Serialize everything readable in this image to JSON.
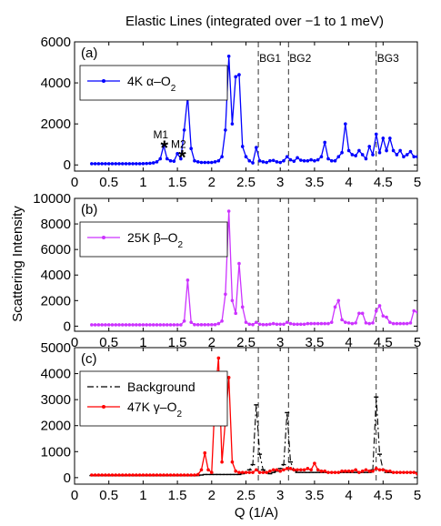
{
  "chart_data": {
    "type": "line",
    "title": "Elastic Lines (integrated over −1 to 1 meV)",
    "xlabel": "Q (1/A)",
    "ylabel": "Scattering Intensity",
    "xlim": [
      0,
      5
    ],
    "xticks": [
      0,
      0.5,
      1,
      1.5,
      2,
      2.5,
      3,
      3.5,
      4,
      4.5,
      5
    ],
    "xtick_labels": [
      "0",
      "0.5",
      "1",
      "1.5",
      "2",
      "2.5",
      "3",
      "3.5",
      "4",
      "4.5",
      "5"
    ],
    "grid": false,
    "vlines": [
      {
        "x": 2.68,
        "label": "BG1"
      },
      {
        "x": 3.12,
        "label": "BG2"
      },
      {
        "x": 4.4,
        "label": "BG3"
      }
    ],
    "panels": [
      {
        "tag": "(a)",
        "ylim": [
          -300,
          6000
        ],
        "yticks": [
          0,
          2000,
          4000,
          6000
        ],
        "ytick_labels": [
          "0",
          "2000",
          "4000",
          "6000"
        ],
        "legend_placement": "top-left",
        "annotations": [
          {
            "text": "M1",
            "x": 1.31,
            "y": 1200
          },
          {
            "text": "M2",
            "x": 1.57,
            "y": 750
          }
        ],
        "series": [
          {
            "name_main": "4K α–O",
            "name_sub": "2",
            "color": "#0000ff",
            "x": [
              0.25,
              0.3,
              0.35,
              0.4,
              0.45,
              0.5,
              0.55,
              0.6,
              0.65,
              0.7,
              0.75,
              0.8,
              0.85,
              0.9,
              0.95,
              1.0,
              1.05,
              1.1,
              1.15,
              1.2,
              1.25,
              1.3,
              1.35,
              1.4,
              1.45,
              1.5,
              1.55,
              1.6,
              1.65,
              1.7,
              1.75,
              1.8,
              1.85,
              1.9,
              1.95,
              2.0,
              2.05,
              2.1,
              2.15,
              2.2,
              2.25,
              2.3,
              2.35,
              2.4,
              2.45,
              2.5,
              2.55,
              2.6,
              2.65,
              2.7,
              2.75,
              2.8,
              2.85,
              2.9,
              2.95,
              3.0,
              3.05,
              3.1,
              3.15,
              3.2,
              3.25,
              3.3,
              3.35,
              3.4,
              3.45,
              3.5,
              3.55,
              3.6,
              3.65,
              3.7,
              3.75,
              3.8,
              3.85,
              3.9,
              3.95,
              4.0,
              4.05,
              4.1,
              4.15,
              4.2,
              4.25,
              4.3,
              4.35,
              4.4,
              4.45,
              4.5,
              4.55,
              4.6,
              4.65,
              4.7,
              4.75,
              4.8,
              4.85,
              4.9,
              4.95,
              5.0
            ],
            "y": [
              60,
              60,
              60,
              60,
              60,
              60,
              60,
              60,
              60,
              60,
              60,
              60,
              60,
              60,
              60,
              65,
              70,
              80,
              100,
              150,
              300,
              950,
              300,
              200,
              180,
              550,
              300,
              1700,
              3350,
              800,
              200,
              150,
              120,
              120,
              120,
              120,
              150,
              200,
              400,
              1700,
              5300,
              2000,
              4300,
              4400,
              900,
              400,
              200,
              100,
              850,
              200,
              150,
              120,
              200,
              220,
              150,
              120,
              200,
              400,
              250,
              180,
              350,
              230,
              200,
              200,
              250,
              200,
              250,
              400,
              1100,
              300,
              200,
              200,
              400,
              600,
              2000,
              700,
              500,
              450,
              700,
              500,
              300,
              900,
              500,
              1500,
              600,
              1300,
              700,
              1300,
              700,
              500,
              700,
              400,
              500,
              650,
              400,
              400
            ]
          }
        ]
      },
      {
        "tag": "(b)",
        "ylim": [
          -400,
          10000
        ],
        "yticks": [
          0,
          2000,
          4000,
          6000,
          8000,
          10000
        ],
        "ytick_labels": [
          "0",
          "2000",
          "4000",
          "6000",
          "8000",
          "10000"
        ],
        "legend_placement": "top-left",
        "series": [
          {
            "name_main": "25K β–O",
            "name_sub": "2",
            "color": "#cc33ff",
            "x": [
              0.25,
              0.3,
              0.35,
              0.4,
              0.45,
              0.5,
              0.55,
              0.6,
              0.65,
              0.7,
              0.75,
              0.8,
              0.85,
              0.9,
              0.95,
              1.0,
              1.05,
              1.1,
              1.15,
              1.2,
              1.25,
              1.3,
              1.35,
              1.4,
              1.45,
              1.5,
              1.55,
              1.6,
              1.65,
              1.7,
              1.75,
              1.8,
              1.85,
              1.9,
              1.95,
              2.0,
              2.05,
              2.1,
              2.15,
              2.2,
              2.25,
              2.3,
              2.35,
              2.4,
              2.45,
              2.5,
              2.55,
              2.6,
              2.65,
              2.7,
              2.75,
              2.8,
              2.85,
              2.9,
              2.95,
              3.0,
              3.05,
              3.1,
              3.15,
              3.2,
              3.25,
              3.3,
              3.35,
              3.4,
              3.45,
              3.5,
              3.55,
              3.6,
              3.65,
              3.7,
              3.75,
              3.8,
              3.85,
              3.9,
              3.95,
              4.0,
              4.05,
              4.1,
              4.15,
              4.2,
              4.25,
              4.3,
              4.35,
              4.4,
              4.45,
              4.5,
              4.55,
              4.6,
              4.65,
              4.7,
              4.75,
              4.8,
              4.85,
              4.9,
              4.95,
              5.0
            ],
            "y": [
              100,
              100,
              100,
              100,
              100,
              100,
              100,
              100,
              100,
              100,
              100,
              100,
              100,
              100,
              100,
              100,
              100,
              100,
              100,
              100,
              100,
              100,
              100,
              100,
              100,
              100,
              100,
              400,
              3600,
              300,
              120,
              110,
              110,
              110,
              110,
              110,
              120,
              200,
              400,
              2500,
              9000,
              2000,
              1000,
              4900,
              1500,
              300,
              150,
              120,
              300,
              150,
              120,
              120,
              150,
              200,
              150,
              150,
              150,
              300,
              200,
              150,
              150,
              150,
              150,
              200,
              200,
              200,
              200,
              200,
              200,
              200,
              300,
              1500,
              2000,
              500,
              300,
              250,
              200,
              250,
              1000,
              1000,
              250,
              200,
              250,
              1200,
              1600,
              800,
              700,
              300,
              200,
              200,
              200,
              200,
              200,
              250,
              1200,
              1100
            ]
          }
        ]
      },
      {
        "tag": "(c)",
        "ylim": [
          -250,
          5000
        ],
        "yticks": [
          0,
          1000,
          2000,
          3000,
          4000,
          5000
        ],
        "ytick_labels": [
          "0",
          "1000",
          "2000",
          "3000",
          "4000",
          "5000"
        ],
        "legend_placement": "top-left",
        "series": [
          {
            "name": "Background",
            "color": "#000000",
            "dash": true,
            "x": [
              0.25,
              0.3,
              0.35,
              0.4,
              0.45,
              0.5,
              0.55,
              0.6,
              0.65,
              0.7,
              0.75,
              0.8,
              0.85,
              0.9,
              0.95,
              1.0,
              1.05,
              1.1,
              1.15,
              1.2,
              1.25,
              1.3,
              1.35,
              1.4,
              1.45,
              1.5,
              1.55,
              1.6,
              1.65,
              1.7,
              1.75,
              1.8,
              1.85,
              1.9,
              1.95,
              2.0,
              2.05,
              2.1,
              2.15,
              2.2,
              2.25,
              2.3,
              2.35,
              2.4,
              2.45,
              2.5,
              2.55,
              2.6,
              2.65,
              2.7,
              2.75,
              2.8,
              2.85,
              2.9,
              2.95,
              3.0,
              3.05,
              3.1,
              3.15,
              3.2,
              3.25,
              3.3,
              3.35,
              3.4,
              3.45,
              3.5,
              3.55,
              3.6,
              3.65,
              3.7,
              3.75,
              3.8,
              3.85,
              3.9,
              3.95,
              4.0,
              4.05,
              4.1,
              4.15,
              4.2,
              4.25,
              4.3,
              4.35,
              4.4,
              4.45,
              4.5,
              4.55,
              4.6,
              4.65,
              4.7,
              4.75,
              4.8,
              4.85,
              4.9,
              4.95,
              5.0
            ],
            "y": [
              80,
              80,
              80,
              80,
              80,
              80,
              80,
              80,
              80,
              80,
              80,
              80,
              80,
              80,
              80,
              80,
              80,
              80,
              80,
              80,
              80,
              80,
              80,
              80,
              80,
              80,
              80,
              80,
              80,
              80,
              80,
              80,
              100,
              120,
              120,
              120,
              120,
              120,
              120,
              120,
              120,
              120,
              120,
              120,
              150,
              200,
              300,
              500,
              2800,
              900,
              300,
              200,
              150,
              200,
              250,
              350,
              500,
              2500,
              600,
              300,
              200,
              200,
              200,
              200,
              200,
              200,
              200,
              200,
              200,
              200,
              200,
              200,
              200,
              200,
              200,
              200,
              200,
              200,
              200,
              200,
              200,
              200,
              300,
              3100,
              900,
              300,
              200,
              200,
              200,
              200,
              200,
              200,
              200,
              200,
              200,
              200
            ]
          },
          {
            "name_main": "47K γ–O",
            "name_sub": "2",
            "color": "#ff0000",
            "x": [
              0.25,
              0.3,
              0.35,
              0.4,
              0.45,
              0.5,
              0.55,
              0.6,
              0.65,
              0.7,
              0.75,
              0.8,
              0.85,
              0.9,
              0.95,
              1.0,
              1.05,
              1.1,
              1.15,
              1.2,
              1.25,
              1.3,
              1.35,
              1.4,
              1.45,
              1.5,
              1.55,
              1.6,
              1.65,
              1.7,
              1.75,
              1.8,
              1.85,
              1.9,
              1.95,
              2.0,
              2.05,
              2.1,
              2.15,
              2.2,
              2.25,
              2.3,
              2.35,
              2.4,
              2.45,
              2.5,
              2.55,
              2.6,
              2.65,
              2.7,
              2.75,
              2.8,
              2.85,
              2.9,
              2.95,
              3.0,
              3.05,
              3.1,
              3.15,
              3.2,
              3.25,
              3.3,
              3.35,
              3.4,
              3.45,
              3.5,
              3.55,
              3.6,
              3.65,
              3.7,
              3.75,
              3.8,
              3.85,
              3.9,
              3.95,
              4.0,
              4.05,
              4.1,
              4.15,
              4.2,
              4.25,
              4.3,
              4.35,
              4.4,
              4.45,
              4.5,
              4.55,
              4.6,
              4.65,
              4.7,
              4.75,
              4.8,
              4.85,
              4.9,
              4.95,
              5.0
            ],
            "y": [
              100,
              100,
              100,
              100,
              100,
              100,
              100,
              100,
              100,
              100,
              100,
              100,
              100,
              100,
              100,
              100,
              100,
              100,
              100,
              100,
              100,
              100,
              100,
              100,
              100,
              100,
              100,
              100,
              100,
              100,
              100,
              120,
              300,
              950,
              300,
              200,
              3100,
              4600,
              600,
              2200,
              3850,
              600,
              250,
              200,
              200,
              200,
              200,
              200,
              300,
              200,
              200,
              200,
              250,
              300,
              300,
              250,
              300,
              350,
              350,
              300,
              300,
              300,
              300,
              350,
              300,
              550,
              300,
              250,
              250,
              200,
              200,
              200,
              200,
              250,
              250,
              250,
              250,
              300,
              200,
              250,
              300,
              250,
              250,
              350,
              300,
              300,
              250,
              250,
              200,
              200,
              200,
              200,
              200,
              200,
              200,
              150
            ]
          }
        ]
      }
    ]
  }
}
